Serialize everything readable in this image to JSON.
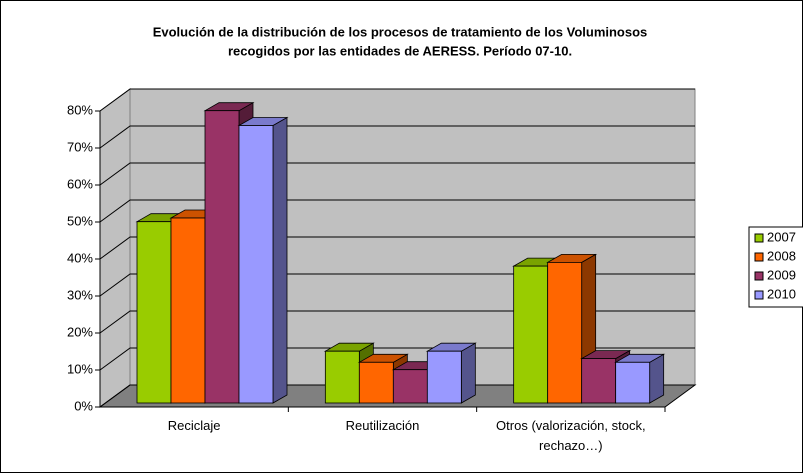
{
  "chart_data": {
    "type": "bar3d",
    "title": [
      "Evolución de la distribución de los procesos de tratamiento de los Voluminosos",
      "recogidos por las entidades de AERESS. Período 07-10."
    ],
    "categories": [
      "Reciclaje",
      "Reutilización",
      "Otros (valorización, stock, rechazo…)"
    ],
    "series": [
      {
        "name": "2007",
        "color": "#99cc00",
        "values": [
          49,
          14,
          37
        ]
      },
      {
        "name": "2008",
        "color": "#ff6600",
        "values": [
          50,
          11,
          38
        ]
      },
      {
        "name": "2009",
        "color": "#993366",
        "values": [
          79,
          9,
          12
        ]
      },
      {
        "name": "2010",
        "color": "#9999ff",
        "values": [
          75,
          14,
          11
        ]
      }
    ],
    "ylim": [
      0,
      80
    ],
    "yticks": [
      {
        "value": 0,
        "label": "0%"
      },
      {
        "value": 10,
        "label": "10%"
      },
      {
        "value": 20,
        "label": "20%"
      },
      {
        "value": 30,
        "label": "30%"
      },
      {
        "value": 40,
        "label": "40%"
      },
      {
        "value": 50,
        "label": "50%"
      },
      {
        "value": 60,
        "label": "60%"
      },
      {
        "value": 70,
        "label": "70%"
      },
      {
        "value": 80,
        "label": "80%"
      }
    ],
    "grid": true,
    "legend": "right"
  }
}
